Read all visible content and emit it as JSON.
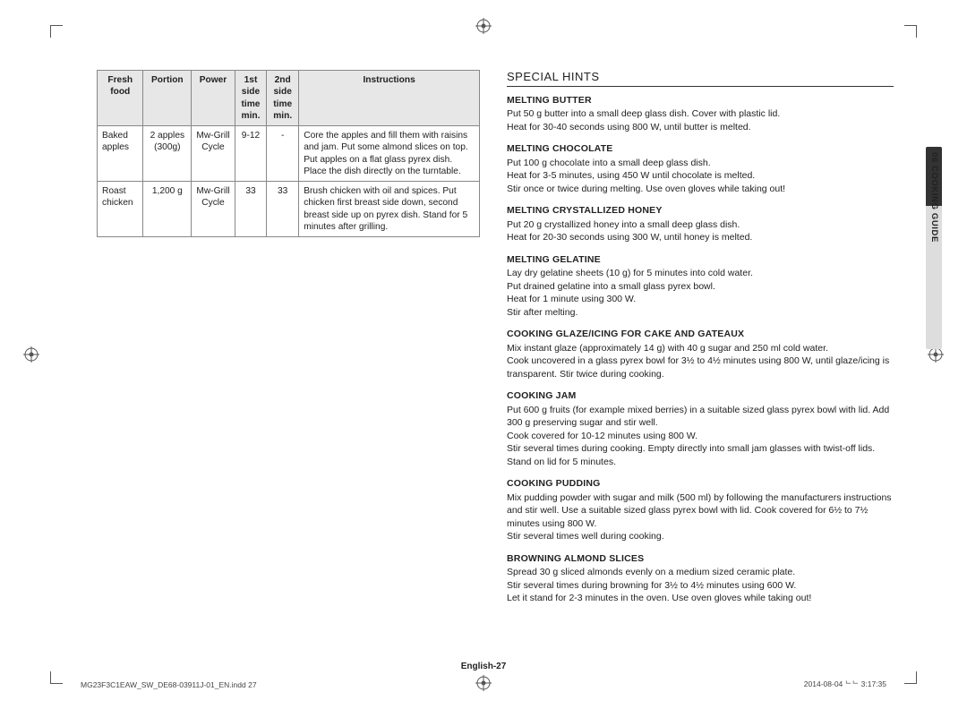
{
  "table": {
    "headers": [
      "Fresh food",
      "Portion",
      "Power",
      "1st side\ntime\nmin.",
      "2nd side\ntime\nmin.",
      "Instructions"
    ],
    "rows": [
      {
        "food": "Baked apples",
        "portion": "2 apples (300g)",
        "power": "Mw-Grill Cycle",
        "t1": "9-12",
        "t2": "-",
        "instr": "Core the apples and fill them with raisins and jam. Put some almond slices on top. Put apples on a flat glass pyrex dish. Place the dish directly on the turntable."
      },
      {
        "food": "Roast chicken",
        "portion": "1,200 g",
        "power": "Mw-Grill Cycle",
        "t1": "33",
        "t2": "33",
        "instr": "Brush chicken with oil and spices. Put chicken first breast side down, second breast side up on pyrex dish. Stand for 5 minutes after grilling."
      }
    ]
  },
  "section_title": "SPECIAL HINTS",
  "side_label": "06  COOKING GUIDE",
  "hints": [
    {
      "h": "MELTING BUTTER",
      "b": "Put 50 g butter into a small deep glass dish. Cover with plastic lid.\nHeat for 30-40 seconds using 800 W, until butter is melted."
    },
    {
      "h": "MELTING CHOCOLATE",
      "b": "Put 100 g chocolate into a small deep glass dish.\nHeat for 3-5 minutes, using 450 W until chocolate is melted.\nStir once or twice during melting. Use oven gloves while taking out!"
    },
    {
      "h": "MELTING CRYSTALLIZED HONEY",
      "b": "Put 20 g crystallized honey into a small deep glass dish.\nHeat for 20-30 seconds using 300 W, until honey is melted."
    },
    {
      "h": "MELTING GELATINE",
      "b": "Lay dry gelatine sheets (10 g) for 5 minutes into cold water.\nPut drained gelatine into a small glass pyrex bowl.\nHeat for 1 minute using 300 W.\nStir after melting."
    },
    {
      "h": "COOKING GLAZE/ICING FOR CAKE AND GATEAUX",
      "b": "Mix instant glaze (approximately 14 g) with 40 g sugar and 250 ml cold water.\nCook uncovered in a glass pyrex bowl for 3½ to 4½ minutes using 800 W, until glaze/icing is transparent. Stir twice during cooking."
    },
    {
      "h": "COOKING JAM",
      "b": "Put 600 g fruits (for example mixed berries) in a suitable sized glass pyrex bowl with lid. Add 300 g preserving sugar and stir well.\nCook covered for 10-12 minutes using 800 W.\nStir several times during cooking. Empty directly into small jam glasses with twist-off lids. Stand on lid for 5 minutes."
    },
    {
      "h": "COOKING PUDDING",
      "b": "Mix pudding powder with sugar and milk (500 ml) by following the manufacturers instructions and stir well. Use a suitable sized glass pyrex bowl with lid. Cook covered for 6½ to 7½ minutes using 800 W.\nStir several times well during cooking."
    },
    {
      "h": "BROWNING ALMOND SLICES",
      "b": "Spread 30 g sliced almonds evenly on a medium sized ceramic plate.\nStir several times during browning for 3½ to 4½ minutes using 600 W.\nLet it stand for 2-3 minutes in the oven. Use oven gloves while taking out!"
    }
  ],
  "footer_center": "English-27",
  "footer_left": "MG23F3C1EAW_SW_DE68-03911J-01_EN.indd   27",
  "footer_right": "2014-08-04   ᄂᄂ 3:17:35"
}
